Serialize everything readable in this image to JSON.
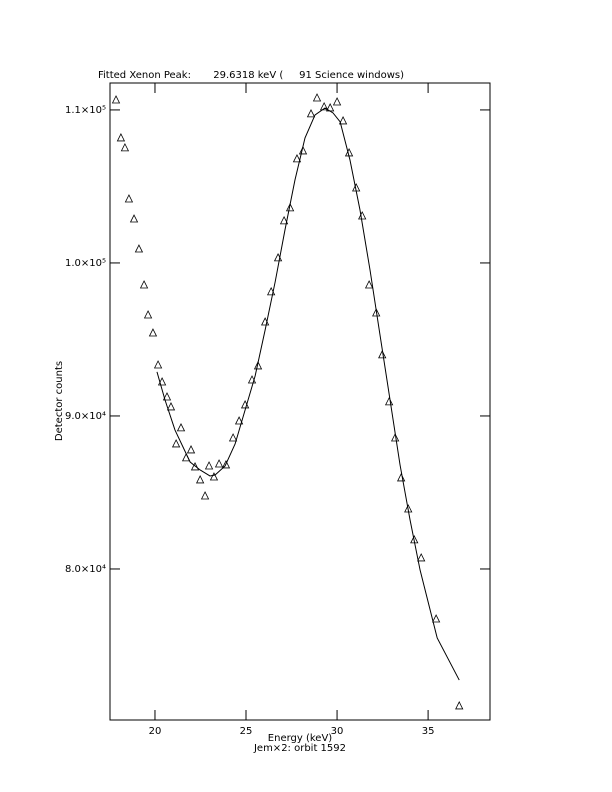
{
  "chart_data": {
    "type": "scatter",
    "title": "Fitted Xenon Peak:       29.6318 keV (     91 Science windows)",
    "x_label": "Energy (keV)",
    "subtitle": "Jem×2: orbit 1592",
    "y_label": "Detector counts",
    "xlim": [
      17.53,
      38.4
    ],
    "ylim": [
      70130,
      111760
    ],
    "xticks": [
      20,
      25,
      30,
      35
    ],
    "yticks": [
      {
        "value": 80000,
        "label": "8.0×10⁴"
      },
      {
        "value": 90000,
        "label": "9.0×10⁴"
      },
      {
        "value": 100000,
        "label": "1.0×10⁵"
      },
      {
        "value": 110000,
        "label": "1.1×10⁵"
      }
    ],
    "series": [
      {
        "marker": "triangle",
        "color": "#000000",
        "x": [
          17.86,
          18.13,
          18.35,
          18.57,
          18.85,
          19.12,
          19.4,
          19.62,
          19.89,
          20.17,
          20.39,
          20.66,
          20.88,
          21.16,
          21.43,
          21.71,
          21.98,
          22.2,
          22.48,
          22.75,
          22.97,
          23.24,
          23.52,
          23.9,
          24.29,
          24.62,
          24.95,
          25.33,
          25.66,
          26.05,
          26.38,
          26.76,
          27.09,
          27.42,
          27.8,
          28.13,
          28.57,
          28.9,
          29.29,
          29.62,
          30.0,
          30.33,
          30.66,
          31.05,
          31.38,
          31.76,
          32.15,
          32.48,
          32.86,
          33.19,
          33.52,
          33.91,
          34.24,
          34.62,
          35.44,
          36.71
        ],
        "values": [
          110650,
          108170,
          107520,
          104180,
          102870,
          100910,
          98560,
          96600,
          95420,
          93330,
          92220,
          91240,
          90590,
          88170,
          89220,
          87260,
          87780,
          86670,
          85820,
          84770,
          86730,
          86010,
          86860,
          86800,
          88560,
          89670,
          90720,
          92350,
          93270,
          96140,
          98110,
          100330,
          102750,
          103600,
          106800,
          107320,
          109740,
          110780,
          110200,
          110130,
          110520,
          109280,
          107190,
          104900,
          103070,
          98560,
          96730,
          93990,
          90920,
          88560,
          85950,
          83920,
          81900,
          80720,
          76730,
          71050
        ]
      },
      {
        "marker": "line",
        "color": "#000000",
        "x": [
          20.11,
          20.55,
          21.1,
          21.93,
          22.48,
          23.02,
          23.3,
          23.85,
          24.4,
          24.95,
          25.5,
          26.05,
          26.6,
          27.14,
          27.69,
          28.24,
          28.79,
          29.34,
          29.78,
          30.17,
          30.71,
          31.26,
          31.81,
          32.36,
          32.91,
          33.46,
          34.01,
          34.56,
          35.5,
          36.71
        ],
        "values": [
          92880,
          91050,
          89080,
          86990,
          86470,
          86080,
          86140,
          86730,
          88170,
          90390,
          92610,
          95620,
          98760,
          102160,
          105430,
          108170,
          109670,
          110130,
          109800,
          109220,
          106730,
          103460,
          99540,
          95290,
          91050,
          86800,
          83200,
          79930,
          75490,
          72740
        ]
      }
    ]
  }
}
